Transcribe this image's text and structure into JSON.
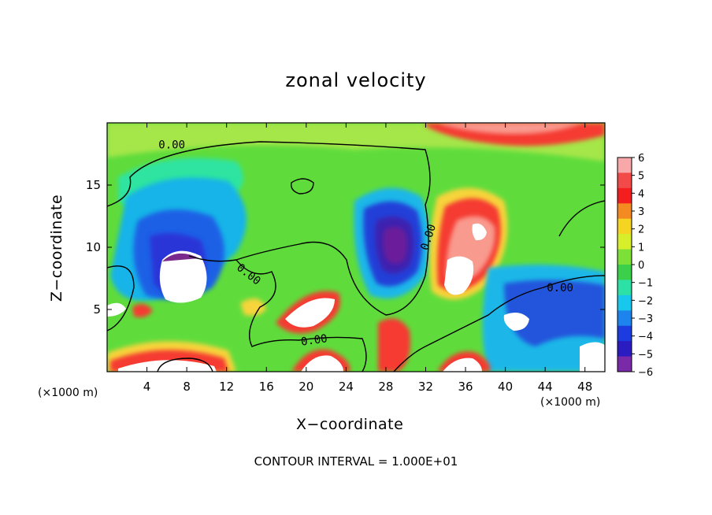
{
  "chart_data": {
    "type": "heatmap",
    "title": "zonal velocity",
    "xlabel": "X−coordinate",
    "ylabel": "Z−coordinate",
    "x_unit_label": "(×1000 m)",
    "x_ticks": [
      4,
      8,
      12,
      16,
      20,
      24,
      28,
      32,
      36,
      40,
      44,
      48
    ],
    "y_ticks": [
      5,
      10,
      15
    ],
    "xlim": [
      0,
      50
    ],
    "ylim": [
      0,
      20
    ],
    "colorbar": {
      "ticks": [
        "6",
        "5",
        "4",
        "3",
        "2",
        "1",
        "0",
        "−1",
        "−2",
        "−3",
        "−4",
        "−5",
        "−6"
      ],
      "range": [
        -6,
        6
      ]
    },
    "contour_labels": [
      {
        "text": "0.00",
        "x": 6.5,
        "z": 18.2,
        "angle": 0
      },
      {
        "text": "0.00",
        "x": 14.2,
        "z": 7.8,
        "angle": 38
      },
      {
        "text": "0.00",
        "x": 32.3,
        "z": 10.8,
        "angle": -72
      },
      {
        "text": "0.00",
        "x": 45.5,
        "z": 6.7,
        "angle": 0
      },
      {
        "text": "0.00",
        "x": 20.8,
        "z": 2.5,
        "angle": -8
      }
    ],
    "footer": "CONTOUR INTERVAL = 1.000E+01"
  }
}
